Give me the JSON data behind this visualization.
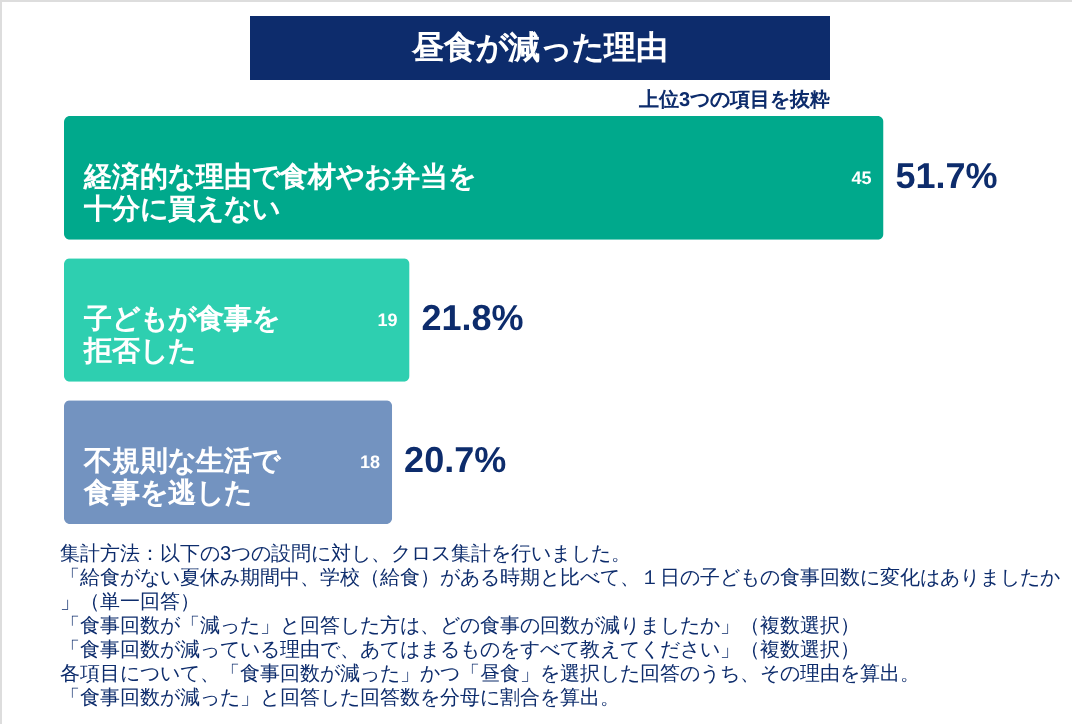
{
  "chart_data": {
    "type": "bar",
    "orientation": "horizontal",
    "title": "昼食が減った理由",
    "subtitle": "上位3つの項目を抜粋",
    "categories": [
      "経済的な理由で食材やお弁当を十分に買えない",
      "子どもが食事を拒否した",
      "不規則な生活で食事を逃した"
    ],
    "values": [
      51.7,
      21.8,
      20.7
    ],
    "colors": [
      "#00a98c",
      "#2ecfb0",
      "#7393c0"
    ],
    "value_labels": [
      "51.7%",
      "21.8%",
      "20.7%"
    ],
    "annotations": [
      {
        "text": "45",
        "x": 51.7,
        "y": "経済的な理由で食材やお弁当を十分に買えない"
      },
      {
        "text": "19",
        "x": 21.8,
        "y": "子どもが食事を拒否した"
      },
      {
        "text": "18",
        "x": 20.7,
        "y": "不規則な生活で食事を逃した"
      },
      "集計方法：以下の3つの設問に対し、クロス集計を行いました。",
      "「給食がない夏休み期間中、学校（給食）がある時期と比べて、１日の子どもの食事回数に変化はありましたか」（単一回答）",
      "「食事回数が「減った」と回答した方は、どの食事の回数が減りましたか」（複数選択）",
      "「食事回数が減っている理由で、あてはまるものをすべて教えてください」（複数選択）",
      "各項目について、「食事回数が減った」かつ「昼食」を選択した回答のうち、その理由を算出。",
      "「食事回数が減った」と回答した回答数を分母に割合を算出。"
    ]
  }
}
